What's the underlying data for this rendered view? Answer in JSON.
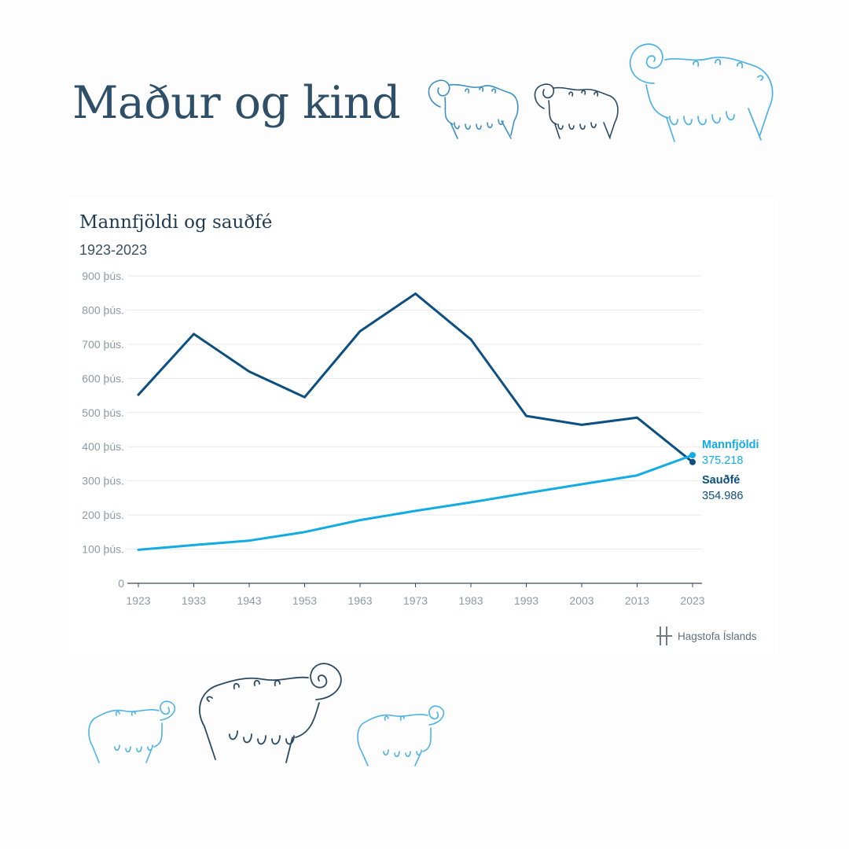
{
  "header": {
    "title": "Maður og kind"
  },
  "chart_data": {
    "type": "line",
    "title": "Mannfjöldi og sauðfé",
    "subtitle": "1923-2023",
    "x": [
      1923,
      1933,
      1943,
      1953,
      1963,
      1973,
      1983,
      1993,
      2003,
      2013,
      2023
    ],
    "ylim": [
      0,
      900000
    ],
    "yticks": [
      0,
      100000,
      200000,
      300000,
      400000,
      500000,
      600000,
      700000,
      800000,
      900000
    ],
    "ytick_labels": [
      "0",
      "100 þús.",
      "200 þús.",
      "300 þús.",
      "400 þús.",
      "500 þús.",
      "600 þús.",
      "700 þús.",
      "800 þús.",
      "900 þús."
    ],
    "grid": true,
    "series": [
      {
        "name": "Sauðfé",
        "color": "#0d4f80",
        "values": [
          552000,
          730000,
          620000,
          545000,
          738000,
          848000,
          714000,
          490000,
          464000,
          485000,
          354986
        ],
        "end_label": "354.986"
      },
      {
        "name": "Mannfjöldi",
        "color": "#12ace3",
        "values": [
          98000,
          112000,
          125000,
          150000,
          185000,
          212000,
          237000,
          264000,
          290000,
          316000,
          375218
        ],
        "end_label": "375.218"
      }
    ]
  },
  "footer": {
    "source_logo_text": "Hagstofa Íslands"
  },
  "colors": {
    "dark_blue": "#0d4f80",
    "light_blue": "#12ace3",
    "title_color": "#2f4f68"
  },
  "decorations": {
    "icons": [
      "sheep-icon",
      "sheep-icon",
      "ram-icon",
      "sheep-icon",
      "ram-icon",
      "sheep-icon"
    ]
  }
}
